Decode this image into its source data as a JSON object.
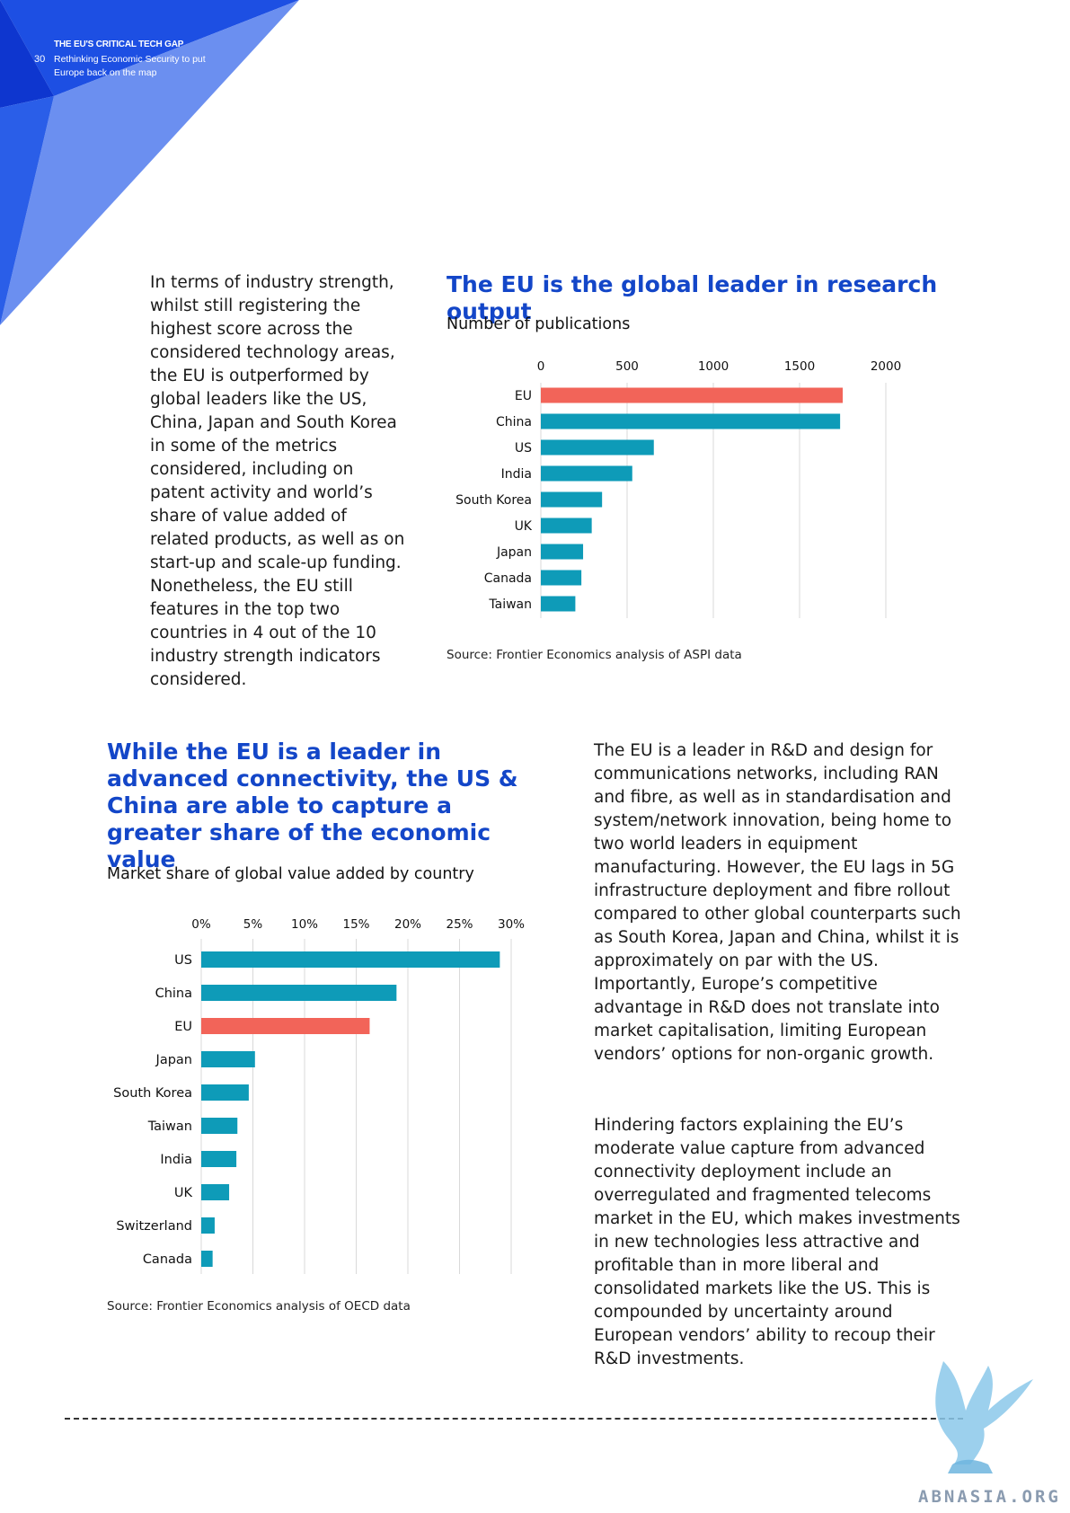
{
  "header": {
    "page_number": "30",
    "report_title": "THE EU'S CRITICAL TECH GAP",
    "report_subtitle": "Rethinking Economic Security to put Europe back on the map"
  },
  "colors": {
    "accent_blue": "#1346c8",
    "bar_teal": "#0e9bb8",
    "bar_highlight": "#f26459",
    "corner_dark": "#0f3fe0",
    "corner_light": "#6b8ff0"
  },
  "intro_paragraph": "In terms of industry strength, whilst still registering the highest score across the considered technology areas, the EU is outperformed by global leaders like the US, China, Japan and South Korea in some of the metrics considered, including on patent activity and world’s share of value added of related products, as well as on start-up and scale-up funding. Nonetheless, the EU still features in the top two countries in 4 out of the 10 industry strength indicators considered.",
  "chart1": {
    "title": "The EU is the global leader in research output",
    "subtitle": "Number of publications",
    "source": "Source: Frontier Economics analysis of ASPI data"
  },
  "chart2": {
    "title": "While the EU is a leader in advanced connectivity, the US & China are able to capture a greater share of the economic value",
    "subtitle": "Market share of global value added by country",
    "source": "Source: Frontier Economics analysis of OECD data"
  },
  "right_paragraph_1": "The EU is a leader in R&D and design for communications networks, including RAN and fibre, as well as in standardisation and system/network innovation, being home to two world leaders in equipment manufacturing. However, the EU lags in 5G infrastructure deployment and fibre rollout compared to other global counterparts such as South Korea, Japan and China, whilst it is approximately on par with the US. Importantly, Europe’s competitive advantage in R&D does not translate into market capitalisation, limiting European vendors’ options for non-organic growth.",
  "right_paragraph_2": "Hindering factors explaining the EU’s moderate value capture from advanced connectivity deployment include an overregulated and fragmented telecoms market in the EU, which makes investments in new technologies less attractive and profitable than in more liberal and consolidated markets like the US. This is compounded by uncertainty around European vendors’ ability to recoup their R&D investments.",
  "watermark": "ABNASIA.ORG",
  "chart_data": [
    {
      "type": "bar",
      "orientation": "horizontal",
      "title": "The EU is the global leader in research output",
      "xlabel": "Number of publications",
      "xlim": [
        0,
        2000
      ],
      "ticks": [
        "0",
        "500",
        "1000",
        "1500",
        "2000"
      ],
      "tick_values": [
        0,
        500,
        1000,
        1500,
        2000
      ],
      "categories": [
        "EU",
        "China",
        "US",
        "India",
        "South Korea",
        "UK",
        "Japan",
        "Canada",
        "Taiwan"
      ],
      "values": [
        1750,
        1735,
        655,
        530,
        355,
        295,
        245,
        235,
        200
      ],
      "highlight": "EU",
      "grid": true
    },
    {
      "type": "bar",
      "orientation": "horizontal",
      "title": "While the EU is a leader in advanced connectivity, the US & China are able to capture a greater share of the economic value",
      "xlabel": "Market share of global value added by country",
      "xlim": [
        0,
        30
      ],
      "ticks": [
        "0%",
        "5%",
        "10%",
        "15%",
        "20%",
        "25%",
        "30%"
      ],
      "tick_values": [
        0,
        5,
        10,
        15,
        20,
        25,
        30
      ],
      "categories": [
        "US",
        "China",
        "EU",
        "Japan",
        "South Korea",
        "Taiwan",
        "India",
        "UK",
        "Switzerland",
        "Canada"
      ],
      "values": [
        28.9,
        18.9,
        16.3,
        5.2,
        4.6,
        3.5,
        3.4,
        2.7,
        1.3,
        1.1
      ],
      "highlight": "EU",
      "grid": true
    }
  ]
}
